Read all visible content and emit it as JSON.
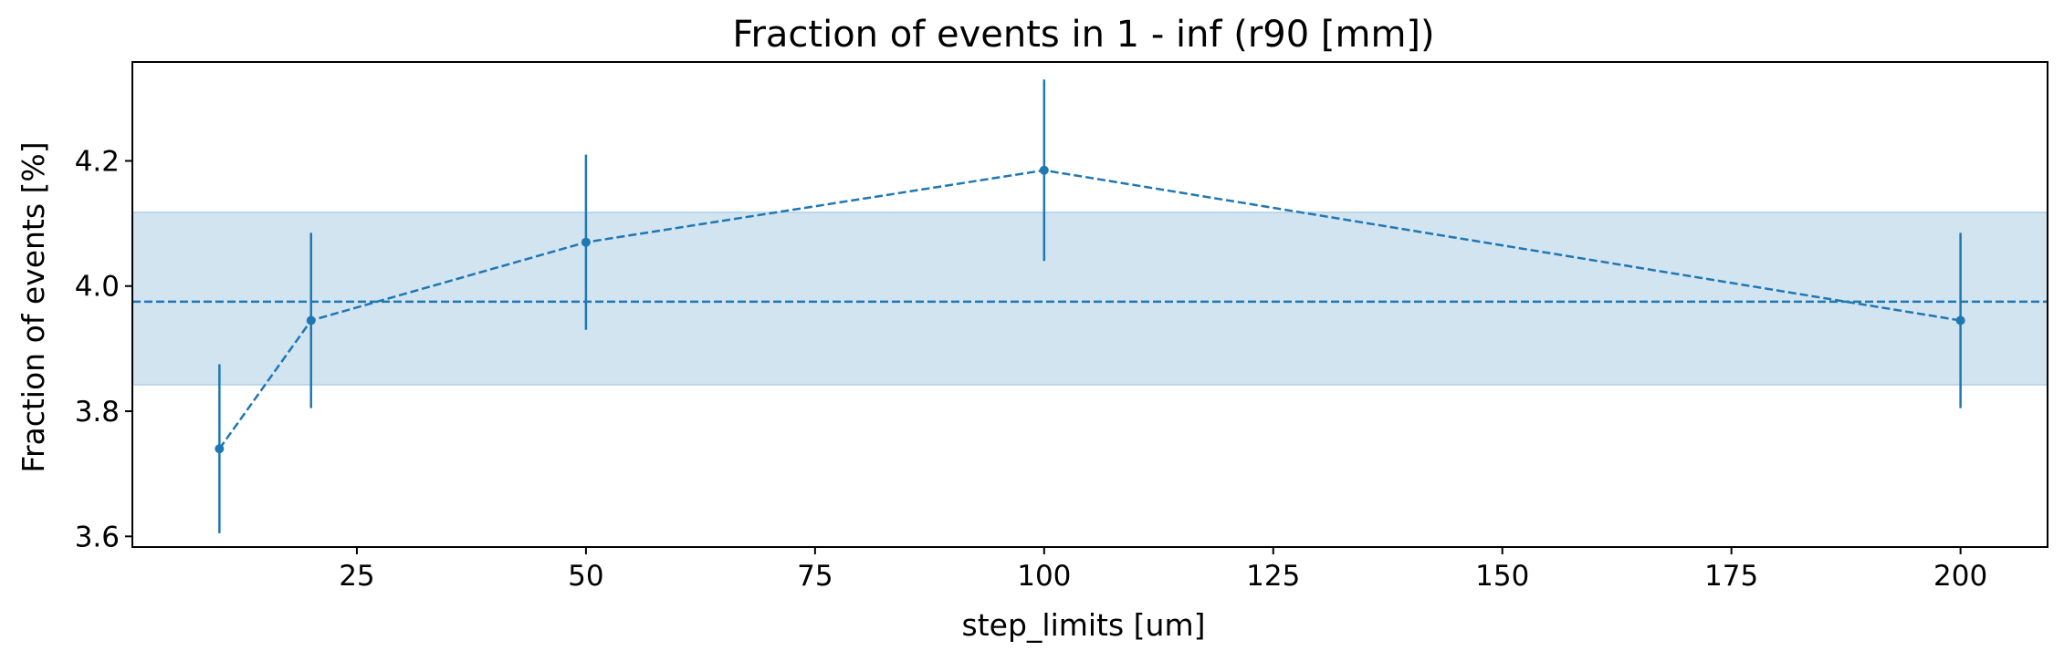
{
  "chart_data": {
    "type": "line",
    "title": "Fraction of events in 1 - inf (r90 [mm])",
    "xlabel": "step_limits [um]",
    "ylabel": "Fraction of events [%]",
    "xlim": [
      0.5,
      209.5
    ],
    "ylim": [
      3.583,
      4.358
    ],
    "xticks": [
      25,
      50,
      75,
      100,
      125,
      150,
      175,
      200
    ],
    "yticks": [
      3.6,
      3.8,
      4.0,
      4.2
    ],
    "xtick_labels": [
      "25",
      "50",
      "75",
      "100",
      "125",
      "150",
      "175",
      "200"
    ],
    "ytick_labels": [
      "3.6",
      "3.8",
      "4.0",
      "4.2"
    ],
    "grid": false,
    "series": [
      {
        "x": [
          10,
          20,
          50,
          100,
          200
        ],
        "y": [
          3.74,
          3.945,
          4.07,
          4.185,
          3.945
        ],
        "yerr": [
          0.135,
          0.14,
          0.14,
          0.145,
          0.14
        ],
        "line_style": "dashed",
        "marker": "circle"
      }
    ],
    "mean_line": 3.975,
    "band": [
      3.842,
      4.118
    ],
    "colors": {
      "series": "#1f77b4",
      "band": "#1f77b4"
    }
  }
}
